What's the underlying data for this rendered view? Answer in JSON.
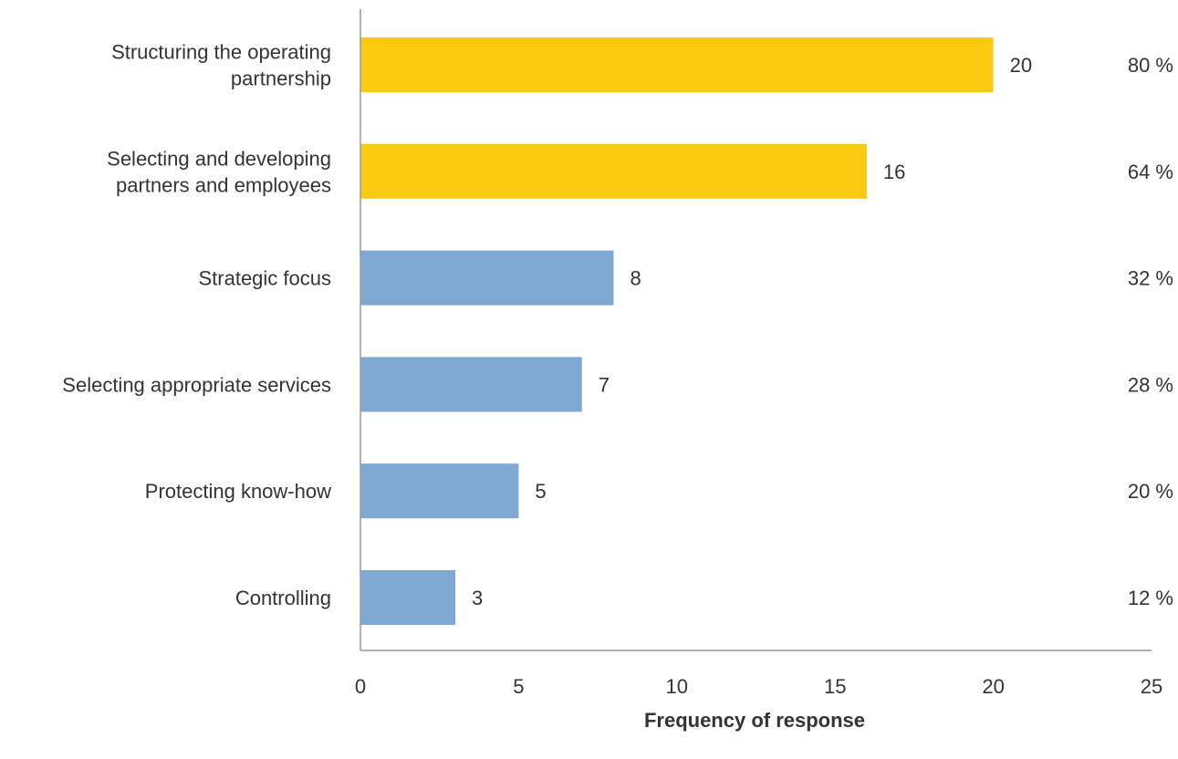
{
  "chart_data": {
    "type": "bar",
    "orientation": "horizontal",
    "categories": [
      [
        "Structuring the operating",
        "partnership"
      ],
      [
        "Selecting and developing",
        "partners and employees"
      ],
      [
        "Strategic focus"
      ],
      [
        "Selecting appropriate services"
      ],
      [
        "Protecting know-how"
      ],
      [
        "Controlling"
      ]
    ],
    "values": [
      20,
      16,
      8,
      7,
      5,
      3
    ],
    "data_labels": [
      "20",
      "16",
      "8",
      "7",
      "5",
      "3"
    ],
    "percent_labels": [
      "80 %",
      "64 %",
      "32 %",
      "28 %",
      "20 %",
      "12 %"
    ],
    "bar_colors": [
      "#FACA15",
      "#FACA15",
      "#7FA9D2",
      "#7FA9D2",
      "#7FA9D2",
      "#7FA9D2"
    ],
    "xlabel": "Frequency of response",
    "ylabel": "",
    "title": "",
    "xlim": [
      0,
      25
    ],
    "xticks": [
      0,
      5,
      10,
      15,
      20,
      25
    ],
    "xtick_labels": [
      "0",
      "5",
      "10",
      "15",
      "20",
      "25"
    ],
    "grid": false,
    "legend": "none",
    "axis_color": "#999999"
  }
}
